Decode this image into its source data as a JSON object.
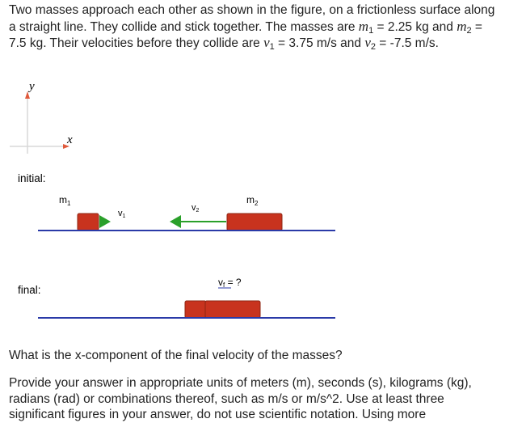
{
  "problem": {
    "part1": "Two masses approach each other as shown in the figure, on a frictionless surface along a straight line. They collide and stick together. The masses are ",
    "m1_symbol": "m",
    "m1_sub": "1",
    "m1_value": " = 2.25 kg and ",
    "m2_symbol": "m",
    "m2_sub": "2",
    "m2_value": " = 7.5 kg. Their velocities before they collide are ",
    "v1_symbol": "v",
    "v1_sub": "1",
    "v1_value": " = 3.75 m/s and ",
    "v2_symbol": "v",
    "v2_sub": "2",
    "v2_value": " = -7.5 m/s."
  },
  "figure": {
    "axis_y_label": "y",
    "axis_x_label": "x",
    "initial_label": "initial:",
    "final_label": "final:",
    "m1_label": "m",
    "m1_label_sub": "1",
    "m2_label": "m",
    "m2_label_sub": "2",
    "v1_label": "v",
    "v1_label_sub": "1",
    "v2_label": "v",
    "v2_label_sub": "2",
    "vf_label": "v",
    "vf_label_sub": "f",
    "vf_suffix": " = ?",
    "colors": {
      "mass": "#c8331e",
      "mass_border": "#8e2412",
      "arrow": "#2aa02a",
      "track": "#2a3aa8",
      "axis": "#e05a3c"
    }
  },
  "question": "What is the x-component of the final velocity of the masses?",
  "instructions": "Provide your answer in appropriate units of meters (m), seconds (s), kilograms (kg), radians (rad) or combinations thereof, such as m/s or m/s^2. Use at least three significant figures in your answer, do not use scientific notation. Using more"
}
